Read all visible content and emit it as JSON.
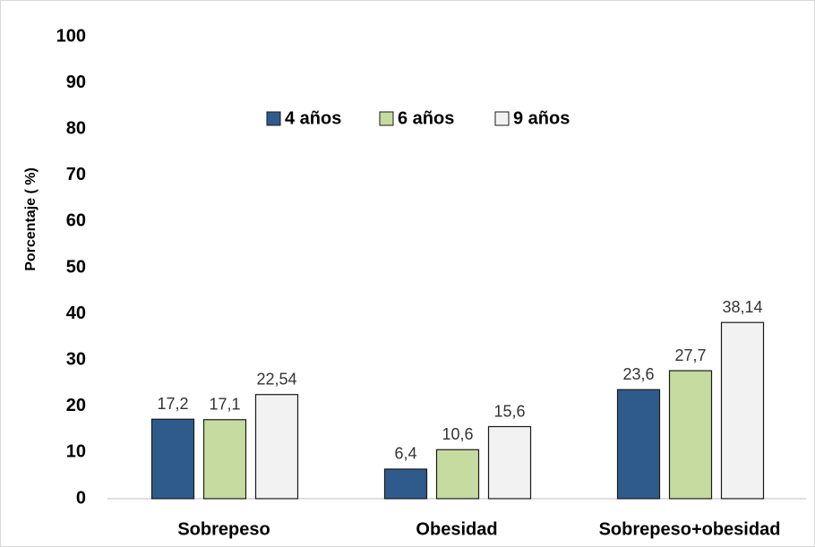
{
  "chart_data": {
    "type": "bar",
    "y_label": "Porcentaje ( %)",
    "categories": [
      "Sobrepeso",
      "Obesidad",
      "Sobrepeso+obesidad"
    ],
    "series": [
      {
        "name": "4 años",
        "color": "#2f5a8c",
        "values": [
          17.2,
          6.4,
          23.6
        ],
        "value_labels": [
          "17,2",
          "6,4",
          "23,6"
        ]
      },
      {
        "name": "6 años",
        "color": "#c5dba0",
        "values": [
          17.1,
          10.6,
          27.7
        ],
        "value_labels": [
          "17,1",
          "10,6",
          "27,7"
        ]
      },
      {
        "name": "9 años",
        "color": "#f2f2f2",
        "values": [
          22.54,
          15.6,
          38.14
        ],
        "value_labels": [
          "22,54",
          "15,6",
          "38,14"
        ]
      }
    ],
    "ylim": [
      0,
      100
    ],
    "yticks": [
      0,
      10,
      20,
      30,
      40,
      50,
      60,
      70,
      80,
      90,
      100
    ],
    "grid": false,
    "legend": "top"
  }
}
